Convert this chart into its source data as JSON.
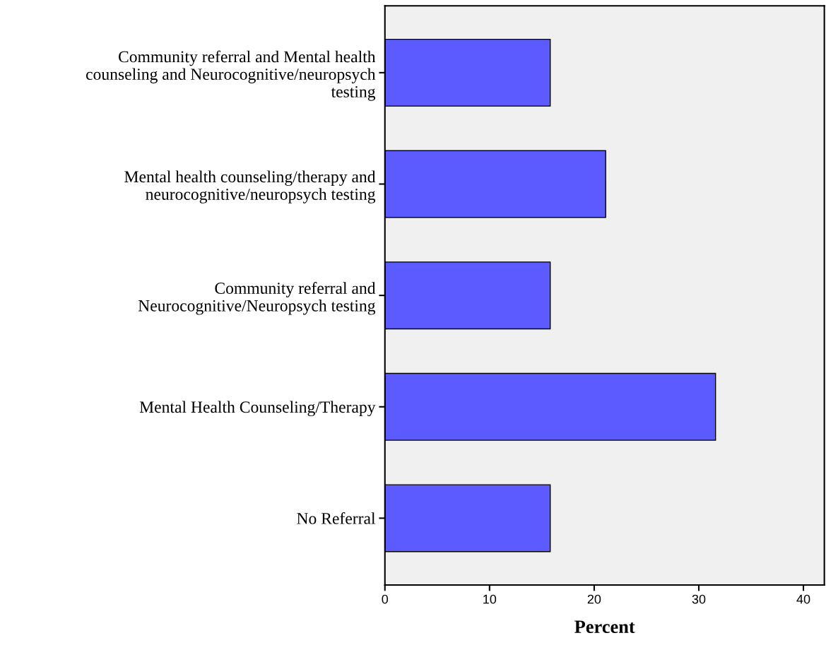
{
  "chart_data": {
    "type": "bar",
    "orientation": "horizontal",
    "xlabel": "Percent",
    "categories": [
      "Community referral and Mental health\ncounseling and Neurocognitive/neuropsych\ntesting",
      "Mental health counseling/therapy and\nneurocognitive/neuropsych testing",
      "Community referral and\nNeurocognitive/Neuropsych testing",
      "Mental Health Counseling/Therapy",
      "No Referral"
    ],
    "values": [
      15.8,
      21.1,
      15.8,
      31.6,
      15.8
    ],
    "color": "#5b5bff",
    "xlim": [
      0,
      42
    ],
    "xticks": [
      0,
      10,
      20,
      30,
      40
    ],
    "grid": false,
    "legend": false
  }
}
